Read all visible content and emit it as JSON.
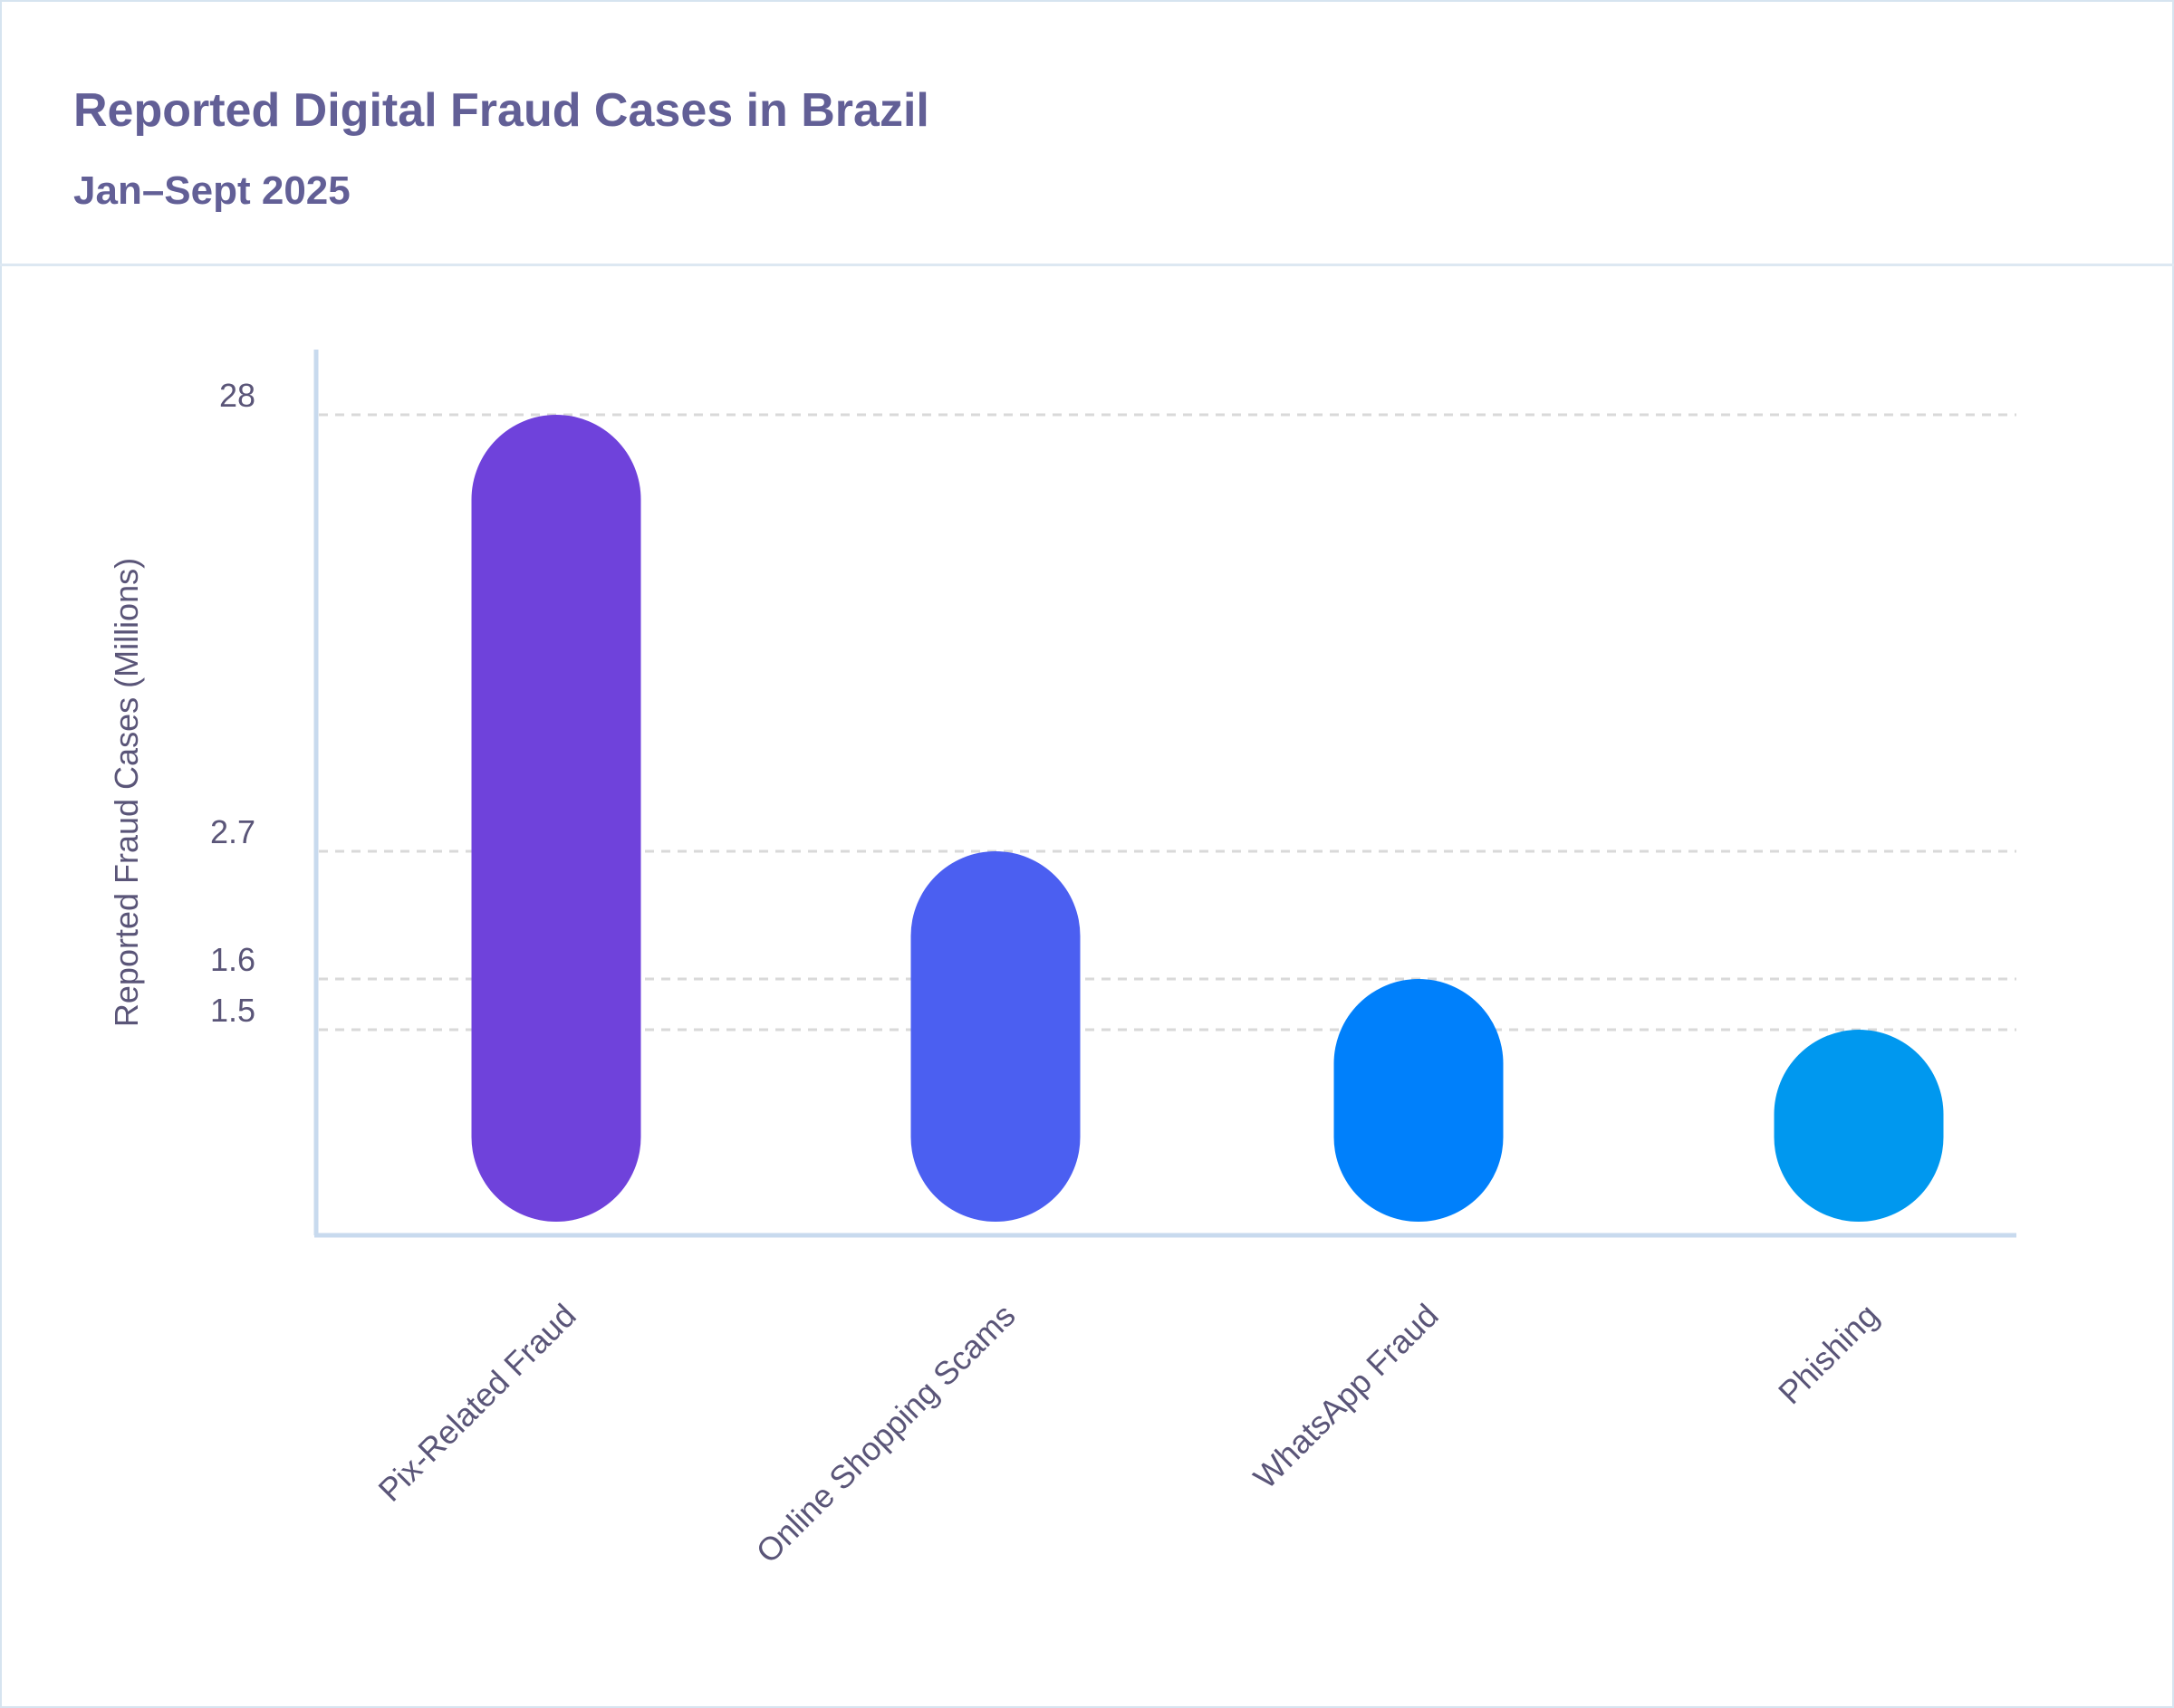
{
  "header": {
    "title": "Reported Digital Fraud Cases in Brazil",
    "subtitle": "Jan–Sept 2025"
  },
  "chart_data": {
    "type": "bar",
    "title": "Reported Digital Fraud Cases in Brazil",
    "subtitle": "Jan–Sept 2025",
    "xlabel": "",
    "ylabel": "Reported Fraud Cases (Millions)",
    "categories": [
      "Pix-Related Fraud",
      "Online Shopping Scams",
      "WhatsApp Fraud",
      "Phishing"
    ],
    "values": [
      28,
      2.7,
      1.6,
      1.5
    ],
    "colors": [
      "#6f42db",
      "#4b5ff1",
      "#0080fb",
      "#0098ef"
    ],
    "yticks": [
      28,
      2.7,
      1.6,
      1.5
    ],
    "ytick_labels": [
      "28",
      "2.7",
      "1.6",
      "1.5"
    ],
    "grid": true,
    "legend": "none"
  }
}
